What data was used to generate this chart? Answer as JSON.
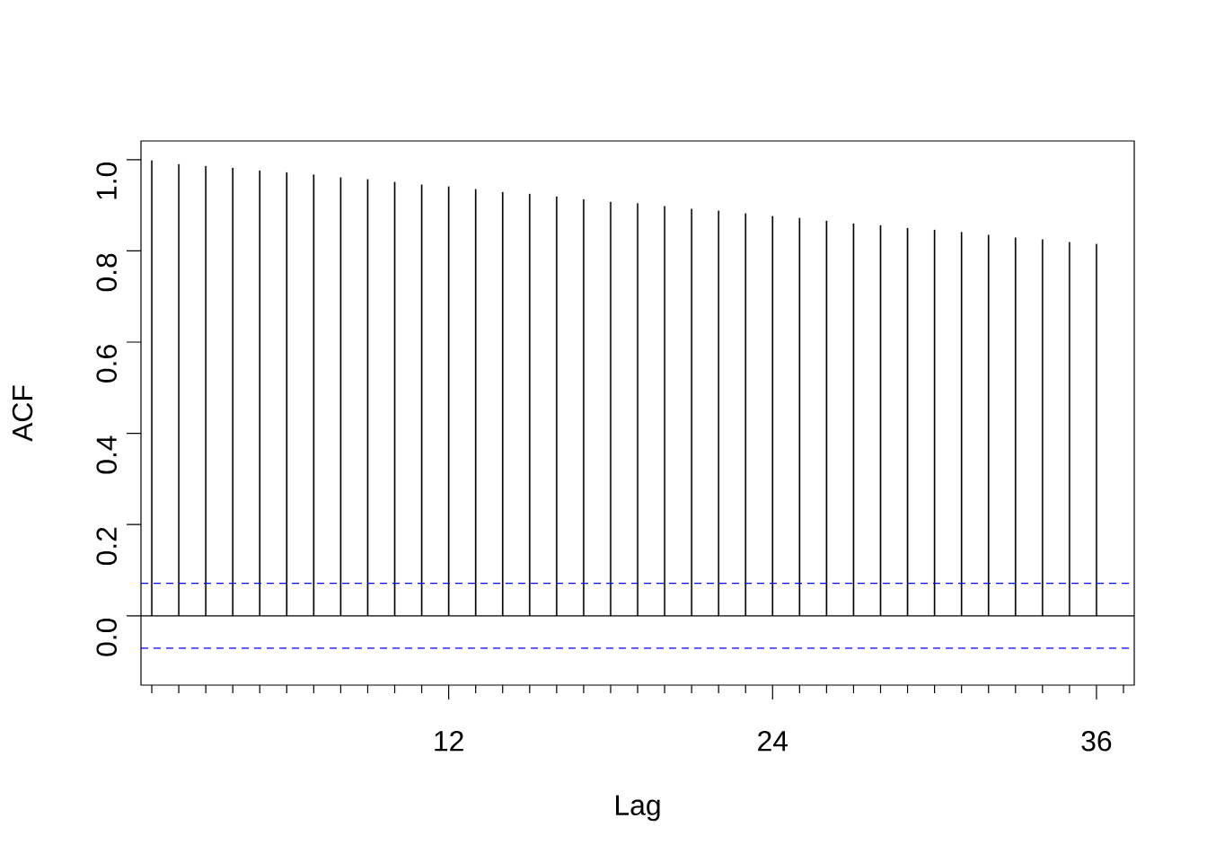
{
  "chart_data": {
    "type": "bar",
    "xlabel": "Lag",
    "ylabel": "ACF",
    "x": [
      1,
      2,
      3,
      4,
      5,
      6,
      7,
      8,
      9,
      10,
      11,
      12,
      13,
      14,
      15,
      16,
      17,
      18,
      19,
      20,
      21,
      22,
      23,
      24,
      25,
      26,
      27,
      28,
      29,
      30,
      31,
      32,
      33,
      34,
      35,
      36
    ],
    "series": [
      {
        "color": "#000000",
        "values": [
          0.998,
          0.99,
          0.986,
          0.982,
          0.976,
          0.972,
          0.967,
          0.961,
          0.957,
          0.951,
          0.945,
          0.941,
          0.935,
          0.929,
          0.925,
          0.919,
          0.913,
          0.907,
          0.904,
          0.898,
          0.892,
          0.888,
          0.882,
          0.876,
          0.872,
          0.866,
          0.86,
          0.856,
          0.85,
          0.846,
          0.841,
          0.835,
          0.829,
          0.825,
          0.819,
          0.815
        ]
      }
    ],
    "xlim": [
      0.6,
      37.4
    ],
    "ylim": [
      -0.152,
      1.041
    ],
    "xticks": [
      {
        "value": 1,
        "label": null
      },
      {
        "value": 2,
        "label": null
      },
      {
        "value": 3,
        "label": null
      },
      {
        "value": 4,
        "label": null
      },
      {
        "value": 5,
        "label": null
      },
      {
        "value": 6,
        "label": null
      },
      {
        "value": 7,
        "label": null
      },
      {
        "value": 8,
        "label": null
      },
      {
        "value": 9,
        "label": null
      },
      {
        "value": 10,
        "label": null
      },
      {
        "value": 11,
        "label": null
      },
      12,
      {
        "value": 13,
        "label": null
      },
      {
        "value": 14,
        "label": null
      },
      {
        "value": 15,
        "label": null
      },
      {
        "value": 16,
        "label": null
      },
      {
        "value": 17,
        "label": null
      },
      {
        "value": 18,
        "label": null
      },
      {
        "value": 19,
        "label": null
      },
      {
        "value": 20,
        "label": null
      },
      {
        "value": 21,
        "label": null
      },
      {
        "value": 22,
        "label": null
      },
      {
        "value": 23,
        "label": null
      },
      24,
      {
        "value": 25,
        "label": null
      },
      {
        "value": 26,
        "label": null
      },
      {
        "value": 27,
        "label": null
      },
      {
        "value": 28,
        "label": null
      },
      {
        "value": 29,
        "label": null
      },
      {
        "value": 30,
        "label": null
      },
      {
        "value": 31,
        "label": null
      },
      {
        "value": 32,
        "label": null
      },
      {
        "value": 33,
        "label": null
      },
      {
        "value": 34,
        "label": null
      },
      {
        "value": 35,
        "label": null
      },
      36,
      {
        "value": 37,
        "label": null
      }
    ],
    "yticks": [
      {
        "value": 0,
        "label": "0.0"
      },
      {
        "value": 0.2,
        "label": "0.2"
      },
      {
        "value": 0.4,
        "label": "0.4"
      },
      {
        "value": 0.6,
        "label": "0.6"
      },
      {
        "value": 0.8,
        "label": "0.8"
      },
      {
        "value": 1,
        "label": "1.0"
      }
    ],
    "ref_lines": [
      {
        "axis": "y",
        "value": 0,
        "color": "#000000",
        "line_style": "solid"
      },
      {
        "axis": "y",
        "value": 0.071,
        "color": "#0000ff",
        "line_style": "dashed"
      },
      {
        "axis": "y",
        "value": -0.071,
        "color": "#0000ff",
        "line_style": "dashed"
      }
    ]
  }
}
